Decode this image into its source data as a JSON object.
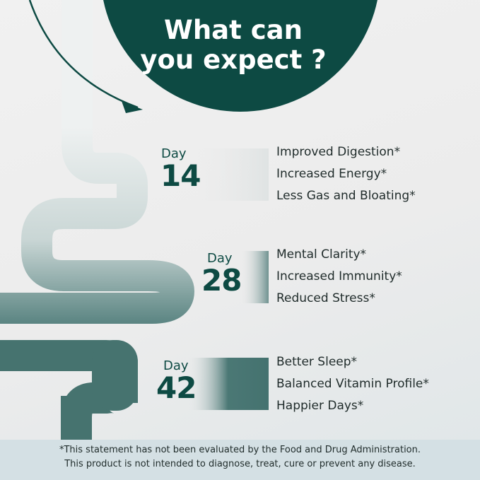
{
  "header": {
    "title_line1": "What can",
    "title_line2": "you expect ?"
  },
  "colors": {
    "brand_dark": "#0d4a43",
    "tube_light": "#eef1f1",
    "tube_dark": "#4a7774",
    "footer_bg": "#d4e0e4"
  },
  "milestones": [
    {
      "label": "Day",
      "number": "14",
      "benefits": [
        "Improved Digestion*",
        "Increased Energy*",
        "Less Gas and Bloating*"
      ]
    },
    {
      "label": "Day",
      "number": "28",
      "benefits": [
        "Mental Clarity*",
        "Increased Immunity*",
        "Reduced Stress*"
      ]
    },
    {
      "label": "Day",
      "number": "42",
      "benefits": [
        "Better Sleep*",
        "Balanced Vitamin Profile*",
        "Happier Days*"
      ]
    }
  ],
  "footer": {
    "line1": "*This statement has not been evaluated by the Food and Drug Administration.",
    "line2": "This product is not intended to diagnose, treat, cure or prevent any disease."
  }
}
